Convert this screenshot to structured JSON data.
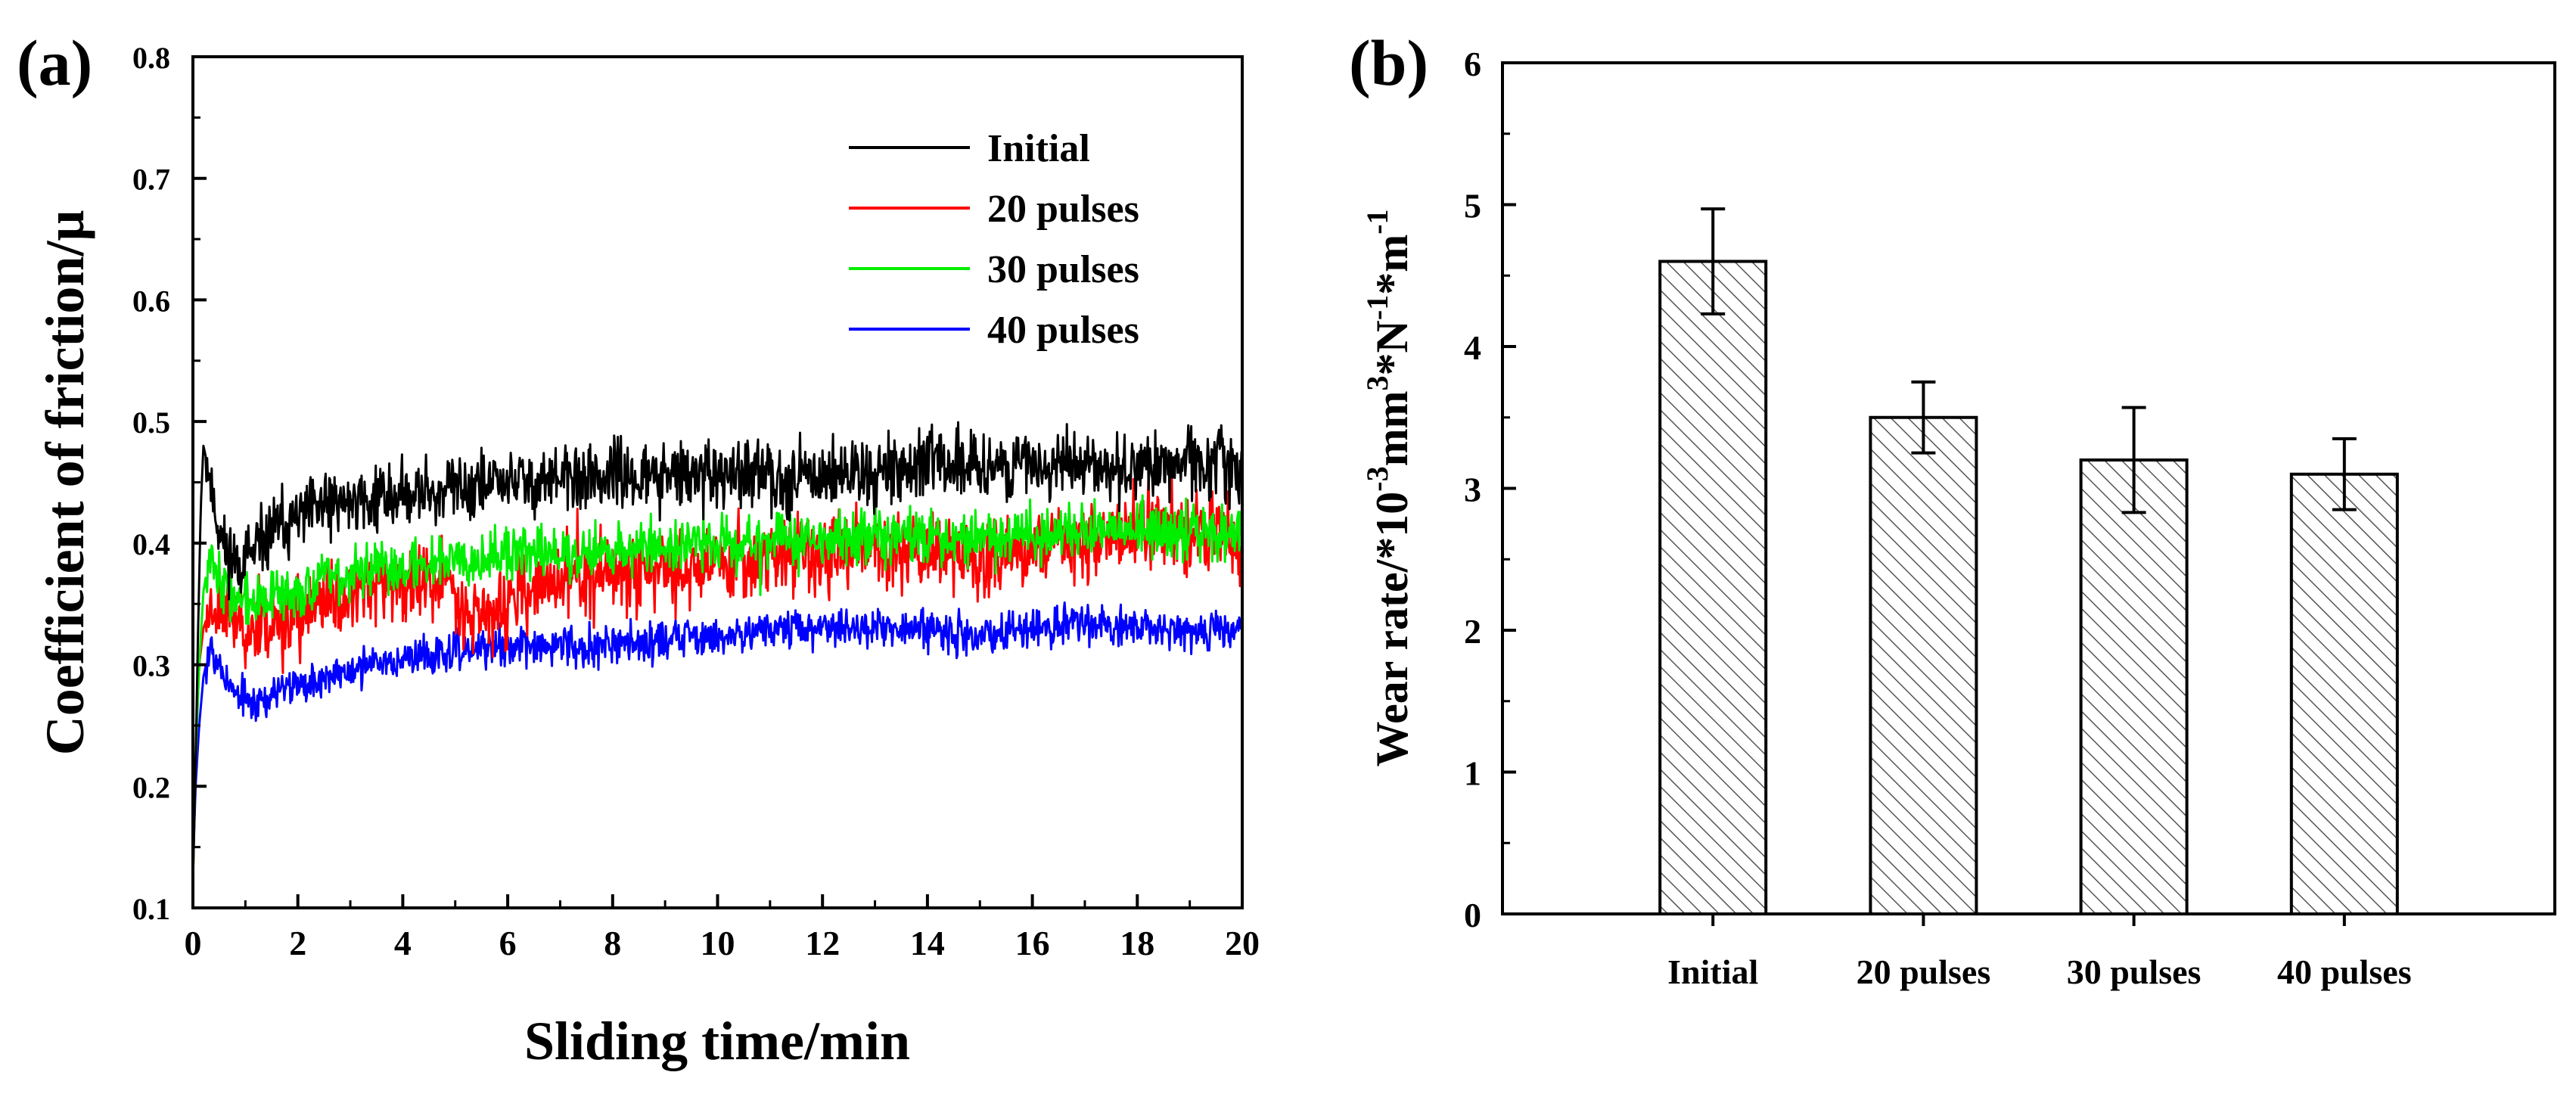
{
  "chart_data": [
    {
      "panel": "(a)",
      "type": "line",
      "xlabel": "Sliding time/min",
      "ylabel": "Coefficient of friction/μ",
      "xlim": [
        0,
        20
      ],
      "ylim": [
        0.1,
        0.8
      ],
      "xticks": [
        "0",
        "2",
        "4",
        "6",
        "8",
        "10",
        "12",
        "14",
        "16",
        "18",
        "20"
      ],
      "yticks": [
        "0.1",
        "0.2",
        "0.3",
        "0.4",
        "0.5",
        "0.6",
        "0.7",
        "0.8"
      ],
      "legend_position": "top-right",
      "series": [
        {
          "name": "Initial",
          "color": "#000000",
          "noise": 0.014,
          "seed": 11,
          "points": [
            [
              0,
              0.12
            ],
            [
              0.05,
              0.22
            ],
            [
              0.1,
              0.33
            ],
            [
              0.15,
              0.43
            ],
            [
              0.2,
              0.48
            ],
            [
              0.3,
              0.46
            ],
            [
              0.45,
              0.42
            ],
            [
              0.6,
              0.395
            ],
            [
              0.9,
              0.385
            ],
            [
              1.2,
              0.39
            ],
            [
              1.5,
              0.41
            ],
            [
              2,
              0.42
            ],
            [
              2.5,
              0.43
            ],
            [
              3,
              0.435
            ],
            [
              4,
              0.44
            ],
            [
              5,
              0.445
            ],
            [
              6,
              0.45
            ],
            [
              7,
              0.452
            ],
            [
              8,
              0.455
            ],
            [
              9,
              0.455
            ],
            [
              10,
              0.455
            ],
            [
              11,
              0.455
            ],
            [
              12,
              0.457
            ],
            [
              13,
              0.46
            ],
            [
              14,
              0.465
            ],
            [
              15,
              0.465
            ],
            [
              16,
              0.463
            ],
            [
              17,
              0.463
            ],
            [
              18,
              0.465
            ],
            [
              19,
              0.465
            ],
            [
              20,
              0.465
            ]
          ]
        },
        {
          "name": "20 pulses",
          "color": "#ff0000",
          "noise": 0.016,
          "seed": 23,
          "points": [
            [
              0,
              0.12
            ],
            [
              0.05,
              0.22
            ],
            [
              0.12,
              0.3
            ],
            [
              0.2,
              0.33
            ],
            [
              0.35,
              0.35
            ],
            [
              0.6,
              0.35
            ],
            [
              0.9,
              0.33
            ],
            [
              1.2,
              0.33
            ],
            [
              1.6,
              0.335
            ],
            [
              2,
              0.34
            ],
            [
              2.5,
              0.35
            ],
            [
              3,
              0.36
            ],
            [
              4,
              0.365
            ],
            [
              4.8,
              0.37
            ],
            [
              5.3,
              0.345
            ],
            [
              5.7,
              0.34
            ],
            [
              6.2,
              0.355
            ],
            [
              7,
              0.37
            ],
            [
              8,
              0.375
            ],
            [
              9,
              0.38
            ],
            [
              10,
              0.385
            ],
            [
              11,
              0.39
            ],
            [
              12,
              0.39
            ],
            [
              13,
              0.395
            ],
            [
              14,
              0.395
            ],
            [
              15,
              0.385
            ],
            [
              16,
              0.395
            ],
            [
              17,
              0.405
            ],
            [
              18,
              0.41
            ],
            [
              19,
              0.415
            ],
            [
              20,
              0.4
            ]
          ]
        },
        {
          "name": "30 pulses",
          "color": "#00ee00",
          "noise": 0.011,
          "seed": 37,
          "points": [
            [
              0,
              0.12
            ],
            [
              0.05,
              0.22
            ],
            [
              0.12,
              0.3
            ],
            [
              0.2,
              0.36
            ],
            [
              0.35,
              0.4
            ],
            [
              0.5,
              0.37
            ],
            [
              0.8,
              0.355
            ],
            [
              1.2,
              0.35
            ],
            [
              1.6,
              0.355
            ],
            [
              2,
              0.36
            ],
            [
              2.5,
              0.37
            ],
            [
              3,
              0.375
            ],
            [
              4,
              0.38
            ],
            [
              5,
              0.39
            ],
            [
              6,
              0.39
            ],
            [
              7,
              0.392
            ],
            [
              8,
              0.395
            ],
            [
              9,
              0.398
            ],
            [
              10,
              0.4
            ],
            [
              11,
              0.403
            ],
            [
              12,
              0.403
            ],
            [
              13,
              0.405
            ],
            [
              14,
              0.405
            ],
            [
              15,
              0.405
            ],
            [
              16,
              0.405
            ],
            [
              17,
              0.41
            ],
            [
              18,
              0.41
            ],
            [
              19,
              0.41
            ],
            [
              20,
              0.41
            ]
          ]
        },
        {
          "name": "40 pulses",
          "color": "#0000ff",
          "noise": 0.008,
          "seed": 53,
          "points": [
            [
              0,
              0.13
            ],
            [
              0.05,
              0.2
            ],
            [
              0.12,
              0.25
            ],
            [
              0.2,
              0.29
            ],
            [
              0.35,
              0.32
            ],
            [
              0.5,
              0.3
            ],
            [
              0.8,
              0.275
            ],
            [
              1.2,
              0.27
            ],
            [
              1.6,
              0.275
            ],
            [
              2,
              0.285
            ],
            [
              3,
              0.295
            ],
            [
              4,
              0.305
            ],
            [
              5,
              0.31
            ],
            [
              6,
              0.315
            ],
            [
              7,
              0.315
            ],
            [
              8,
              0.318
            ],
            [
              9,
              0.32
            ],
            [
              10,
              0.325
            ],
            [
              11,
              0.33
            ],
            [
              12,
              0.33
            ],
            [
              13,
              0.33
            ],
            [
              14,
              0.33
            ],
            [
              15,
              0.325
            ],
            [
              16,
              0.33
            ],
            [
              17,
              0.335
            ],
            [
              18,
              0.33
            ],
            [
              19,
              0.325
            ],
            [
              20,
              0.33
            ]
          ]
        }
      ]
    },
    {
      "panel": "(b)",
      "type": "bar",
      "xlabel": "",
      "ylabel": "Wear rate/*10^-3 mm^3*N^-1*m^-1",
      "ylabel_parts": {
        "base": "Wear rate/*10",
        "e1": "-3",
        "mid1": "mm",
        "e2": "3",
        "mid2": "*N",
        "e3": "-1",
        "mid3": "*m",
        "e4": "-1"
      },
      "ylim": [
        0,
        6
      ],
      "yticks": [
        "0",
        "1",
        "2",
        "3",
        "4",
        "5",
        "6"
      ],
      "categories": [
        "Initial",
        "20 pulses",
        "30 pulses",
        "40 pulses"
      ],
      "values": [
        4.6,
        3.5,
        3.2,
        3.1
      ],
      "errors": [
        0.37,
        0.25,
        0.37,
        0.25
      ],
      "bar_fill": "hatched"
    }
  ]
}
